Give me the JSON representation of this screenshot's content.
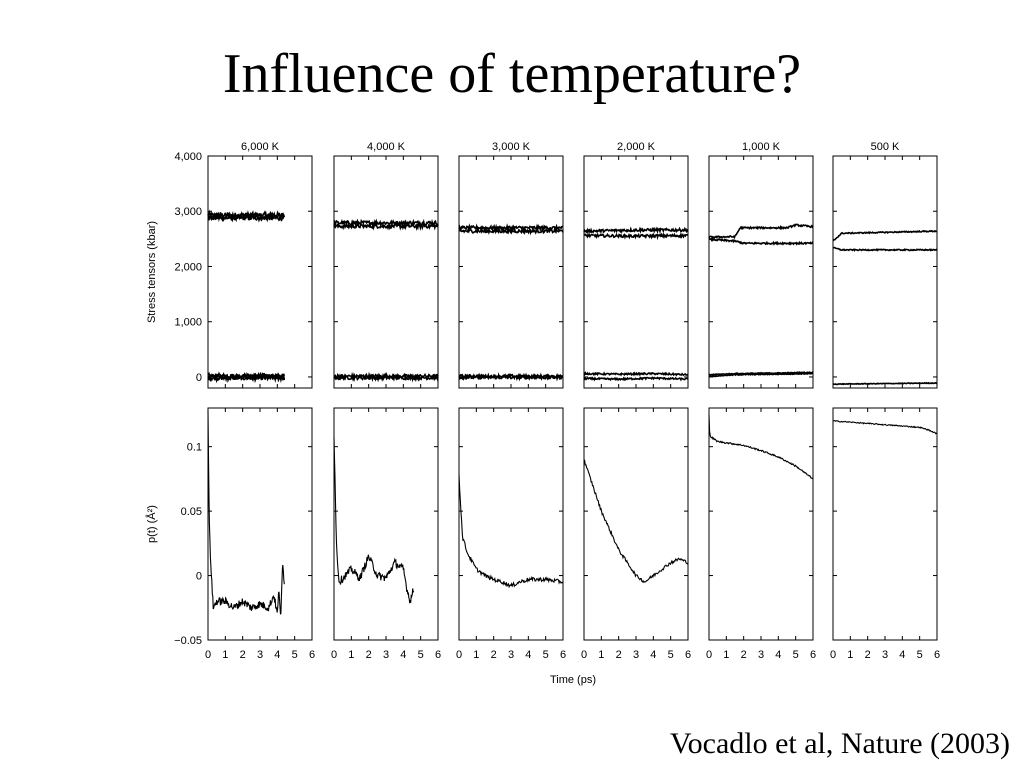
{
  "slide": {
    "title": "Influence of temperature?",
    "citation": "Vocadlo et al, Nature (2003)"
  },
  "chart_data": {
    "type": "line",
    "panel_titles": [
      "6,000 K",
      "4,000 K",
      "3,000 K",
      "2,000 K",
      "1,000 K",
      "500 K"
    ],
    "xlabel": "Time (ps)",
    "xlim": [
      0,
      6
    ],
    "xticks": [
      "0",
      "1",
      "2",
      "3",
      "4",
      "5",
      "6"
    ],
    "top_row": {
      "ylabel": "Stress tensors (kbar)",
      "ylim": [
        -200,
        4000
      ],
      "yticks": [
        {
          "value": 0,
          "label": "0"
        },
        {
          "value": 1000,
          "label": "1,000"
        },
        {
          "value": 2000,
          "label": "2,000"
        },
        {
          "value": 3000,
          "label": "3,000"
        },
        {
          "value": 4000,
          "label": "4,000"
        }
      ],
      "panels": [
        {
          "t_end": 4.4,
          "series": [
            {
              "values": [
                [
                  0,
                  2930
                ],
                [
                  4.4,
                  2930
                ]
              ],
              "noise": 45
            },
            {
              "values": [
                [
                  0,
                  2880
                ],
                [
                  4.4,
                  2880
                ]
              ],
              "noise": 45
            },
            {
              "values": [
                [
                  0,
                  20
                ],
                [
                  4.4,
                  20
                ]
              ],
              "noise": 40
            },
            {
              "values": [
                [
                  0,
                  -20
                ],
                [
                  4.4,
                  -20
                ]
              ],
              "noise": 40
            }
          ]
        },
        {
          "t_end": 6,
          "series": [
            {
              "values": [
                [
                  0,
                  2790
                ],
                [
                  6,
                  2790
                ]
              ],
              "noise": 35
            },
            {
              "values": [
                [
                  0,
                  2730
                ],
                [
                  6,
                  2730
                ]
              ],
              "noise": 35
            },
            {
              "values": [
                [
                  0,
                  15
                ],
                [
                  6,
                  15
                ]
              ],
              "noise": 30
            },
            {
              "values": [
                [
                  0,
                  -15
                ],
                [
                  6,
                  -15
                ]
              ],
              "noise": 30
            }
          ]
        },
        {
          "t_end": 6,
          "series": [
            {
              "values": [
                [
                  0,
                  2700
                ],
                [
                  6,
                  2700
                ]
              ],
              "noise": 30
            },
            {
              "values": [
                [
                  0,
                  2640
                ],
                [
                  6,
                  2640
                ]
              ],
              "noise": 30
            },
            {
              "values": [
                [
                  0,
                  15
                ],
                [
                  6,
                  15
                ]
              ],
              "noise": 25
            },
            {
              "values": [
                [
                  0,
                  -10
                ],
                [
                  6,
                  -10
                ]
              ],
              "noise": 25
            }
          ]
        },
        {
          "t_end": 6,
          "series": [
            {
              "values": [
                [
                  0,
                  2640
                ],
                [
                  3,
                  2660
                ],
                [
                  6,
                  2660
                ]
              ],
              "noise": 25
            },
            {
              "values": [
                [
                  0,
                  2560
                ],
                [
                  3,
                  2550
                ],
                [
                  6,
                  2560
                ]
              ],
              "noise": 25
            },
            {
              "values": [
                [
                  0,
                  60
                ],
                [
                  2,
                  50
                ],
                [
                  4,
                  60
                ],
                [
                  6,
                  40
                ]
              ],
              "noise": 15
            },
            {
              "values": [
                [
                  0,
                  -30
                ],
                [
                  2,
                  -40
                ],
                [
                  4,
                  -20
                ],
                [
                  6,
                  -40
                ]
              ],
              "noise": 15
            }
          ]
        },
        {
          "t_end": 6,
          "series": [
            {
              "values": [
                [
                  0,
                  2530
                ],
                [
                  1.5,
                  2540
                ],
                [
                  1.8,
                  2700
                ],
                [
                  4.5,
                  2700
                ],
                [
                  5,
                  2750
                ],
                [
                  6,
                  2720
                ]
              ],
              "noise": 15
            },
            {
              "values": [
                [
                  0,
                  2490
                ],
                [
                  1.5,
                  2460
                ],
                [
                  2,
                  2420
                ],
                [
                  6,
                  2420
                ]
              ],
              "noise": 15
            },
            {
              "values": [
                [
                  0,
                  40
                ],
                [
                  1.5,
                  60
                ],
                [
                  6,
                  80
                ]
              ],
              "noise": 8
            },
            {
              "values": [
                [
                  0,
                  10
                ],
                [
                  1.5,
                  40
                ],
                [
                  6,
                  60
                ]
              ],
              "noise": 8
            }
          ]
        },
        {
          "t_end": 6,
          "series": [
            {
              "values": [
                [
                  0,
                  2460
                ],
                [
                  0.5,
                  2600
                ],
                [
                  6,
                  2640
                ]
              ],
              "noise": 10
            },
            {
              "values": [
                [
                  0,
                  2340
                ],
                [
                  0.5,
                  2300
                ],
                [
                  6,
                  2300
                ]
              ],
              "noise": 10
            },
            {
              "values": [
                [
                  0,
                  -130
                ],
                [
                  6,
                  -110
                ]
              ],
              "noise": 6
            }
          ]
        }
      ]
    },
    "bottom_row": {
      "ylabel": "p(t) (Å²)",
      "ylim": [
        -0.05,
        0.13
      ],
      "yticks": [
        {
          "value": -0.05,
          "label": "−0.05"
        },
        {
          "value": 0,
          "label": "0"
        },
        {
          "value": 0.05,
          "label": "0.05"
        },
        {
          "value": 0.1,
          "label": "0.1"
        }
      ],
      "panels": [
        {
          "t_end": 4.4,
          "series": [
            {
              "noise": 0.003,
              "values": [
                [
                  0,
                  0.13
                ],
                [
                  0.05,
                  0.06
                ],
                [
                  0.12,
                  0.02
                ],
                [
                  0.3,
                  -0.025
                ],
                [
                  0.5,
                  -0.02
                ],
                [
                  1,
                  -0.02
                ],
                [
                  1.5,
                  -0.025
                ],
                [
                  2,
                  -0.02
                ],
                [
                  2.5,
                  -0.025
                ],
                [
                  3,
                  -0.022
                ],
                [
                  3.5,
                  -0.025
                ],
                [
                  3.8,
                  -0.015
                ],
                [
                  4,
                  -0.03
                ],
                [
                  4.1,
                  -0.01
                ],
                [
                  4.2,
                  -0.035
                ],
                [
                  4.3,
                  0.01
                ],
                [
                  4.4,
                  -0.005
                ]
              ]
            }
          ]
        },
        {
          "t_end": 4.6,
          "series": [
            {
              "noise": 0.003,
              "values": [
                [
                  0,
                  0.11
                ],
                [
                  0.15,
                  0.02
                ],
                [
                  0.3,
                  -0.005
                ],
                [
                  1,
                  0.005
                ],
                [
                  1.5,
                  -0.002
                ],
                [
                  2,
                  0.015
                ],
                [
                  2.5,
                  0
                ],
                [
                  3,
                  -0.002
                ],
                [
                  3.5,
                  0.01
                ],
                [
                  4,
                  0.005
                ],
                [
                  4.2,
                  -0.01
                ],
                [
                  4.4,
                  -0.02
                ],
                [
                  4.6,
                  -0.01
                ]
              ]
            }
          ]
        },
        {
          "t_end": 6,
          "series": [
            {
              "noise": 0.0015,
              "values": [
                [
                  0,
                  0.078
                ],
                [
                  0.2,
                  0.03
                ],
                [
                  0.5,
                  0.017
                ],
                [
                  1,
                  0.005
                ],
                [
                  1.5,
                  0
                ],
                [
                  2,
                  -0.003
                ],
                [
                  2.5,
                  -0.005
                ],
                [
                  3,
                  -0.008
                ],
                [
                  3.5,
                  -0.005
                ],
                [
                  4,
                  -0.003
                ],
                [
                  5,
                  -0.003
                ],
                [
                  6,
                  -0.005
                ]
              ]
            }
          ]
        },
        {
          "t_end": 6,
          "series": [
            {
              "noise": 0.0012,
              "values": [
                [
                  0,
                  0.09
                ],
                [
                  0.5,
                  0.07
                ],
                [
                  1,
                  0.05
                ],
                [
                  1.5,
                  0.035
                ],
                [
                  2,
                  0.02
                ],
                [
                  2.5,
                  0.01
                ],
                [
                  3,
                  0
                ],
                [
                  3.5,
                  -0.005
                ],
                [
                  4,
                  0
                ],
                [
                  4.5,
                  0.005
                ],
                [
                  5,
                  0.01
                ],
                [
                  5.5,
                  0.013
                ],
                [
                  6,
                  0.01
                ]
              ]
            }
          ]
        },
        {
          "t_end": 6,
          "series": [
            {
              "noise": 0.0006,
              "values": [
                [
                  0,
                  0.125
                ],
                [
                  0.05,
                  0.108
                ],
                [
                  0.5,
                  0.104
                ],
                [
                  1,
                  0.103
                ],
                [
                  2,
                  0.101
                ],
                [
                  3,
                  0.097
                ],
                [
                  4,
                  0.092
                ],
                [
                  5,
                  0.085
                ],
                [
                  5.5,
                  0.08
                ],
                [
                  6,
                  0.075
                ]
              ]
            }
          ]
        },
        {
          "t_end": 6,
          "series": [
            {
              "noise": 0.0004,
              "values": [
                [
                  0,
                  0.12
                ],
                [
                  1,
                  0.119
                ],
                [
                  2,
                  0.118
                ],
                [
                  3,
                  0.117
                ],
                [
                  4,
                  0.116
                ],
                [
                  5,
                  0.115
                ],
                [
                  5.5,
                  0.113
                ],
                [
                  6,
                  0.11
                ]
              ]
            }
          ]
        }
      ]
    }
  }
}
